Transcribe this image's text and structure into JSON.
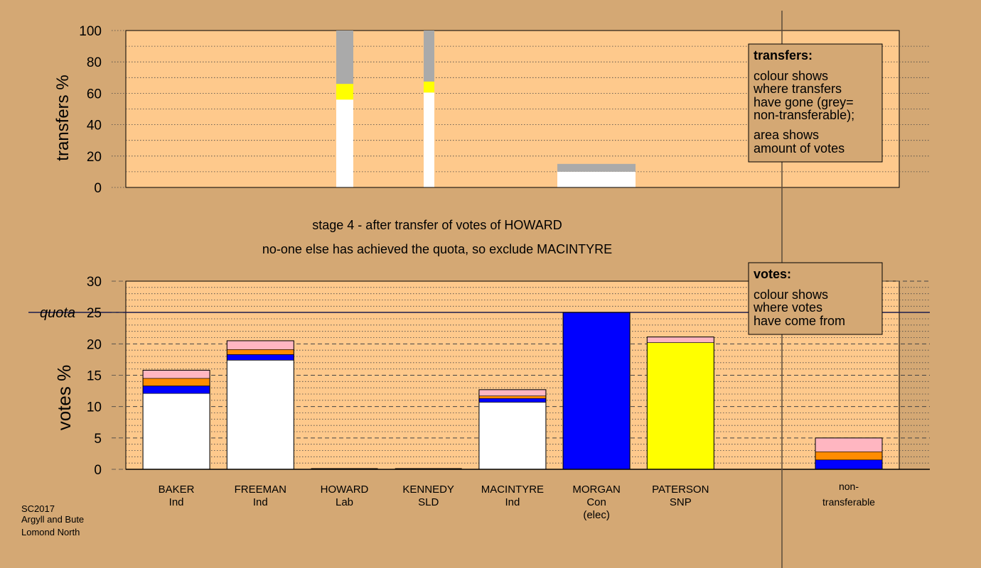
{
  "colors": {
    "page_bg": "#d4a874",
    "plot_bg": "#fec98c",
    "white": "#ffffff",
    "blue": "#0000ff",
    "orange": "#ff8c00",
    "pink": "#ffb6c1",
    "yellow": "#ffff00",
    "grey": "#aaaaaa"
  },
  "stage": {
    "line1": "stage 4 - after transfer of votes of HOWARD",
    "line2": "no-one else has achieved the quota, so exclude MACINTYRE"
  },
  "source": {
    "line1": "SC2017",
    "line2": "Argyll and Bute",
    "line3": "Lomond North"
  },
  "chart_data": [
    {
      "type": "bar",
      "stacked": true,
      "ylabel": "transfers %",
      "ylim": [
        0,
        100
      ],
      "yticks": [
        0,
        20,
        40,
        60,
        80,
        100
      ],
      "legend": {
        "title": "transfers:",
        "lines1": [
          "colour shows",
          "where transfers",
          "have gone (grey=",
          "non-transferable);"
        ],
        "lines2": [
          "area shows",
          "amount of votes"
        ]
      },
      "bars": [
        {
          "candidate": "HOWARD",
          "segments": [
            {
              "color": "white",
              "value": 56
            },
            {
              "color": "yellow",
              "value": 10
            },
            {
              "color": "grey",
              "value": 34
            }
          ]
        },
        {
          "candidate": "KENNEDY",
          "segments": [
            {
              "color": "white",
              "value": 60.5
            },
            {
              "color": "yellow",
              "value": 7
            },
            {
              "color": "grey",
              "value": 32.5
            }
          ]
        },
        {
          "candidate": "MACINTYRE",
          "segments": [
            {
              "color": "white",
              "value": 10
            },
            {
              "color": "grey",
              "value": 5
            }
          ]
        }
      ]
    },
    {
      "type": "bar",
      "stacked": true,
      "ylabel": "votes %",
      "ylim": [
        0,
        30
      ],
      "yticks": [
        0,
        5,
        10,
        15,
        20,
        25,
        30
      ],
      "quota": {
        "value": 25,
        "label": "quota"
      },
      "legend": {
        "title": "votes:",
        "lines1": [
          "colour shows",
          "where votes",
          "have come from"
        ]
      },
      "categories": [
        {
          "name": "BAKER",
          "party": "Ind",
          "note": "",
          "segments": [
            {
              "color": "white",
              "value": 12.1
            },
            {
              "color": "blue",
              "value": 1.2
            },
            {
              "color": "orange",
              "value": 1.2
            },
            {
              "color": "pink",
              "value": 1.3
            }
          ]
        },
        {
          "name": "FREEMAN",
          "party": "Ind",
          "note": "",
          "segments": [
            {
              "color": "white",
              "value": 17.4
            },
            {
              "color": "blue",
              "value": 0.9
            },
            {
              "color": "orange",
              "value": 0.8
            },
            {
              "color": "pink",
              "value": 1.4
            }
          ]
        },
        {
          "name": "HOWARD",
          "party": "Lab",
          "note": "",
          "segments": []
        },
        {
          "name": "KENNEDY",
          "party": "SLD",
          "note": "",
          "segments": []
        },
        {
          "name": "MACINTYRE",
          "party": "Ind",
          "note": "",
          "segments": [
            {
              "color": "white",
              "value": 10.7
            },
            {
              "color": "blue",
              "value": 0.6
            },
            {
              "color": "orange",
              "value": 0.4
            },
            {
              "color": "pink",
              "value": 1.0
            }
          ]
        },
        {
          "name": "MORGAN",
          "party": "Con",
          "note": "(elec)",
          "segments": [
            {
              "color": "blue",
              "value": 25
            }
          ]
        },
        {
          "name": "PATERSON",
          "party": "SNP",
          "note": "",
          "segments": [
            {
              "color": "yellow",
              "value": 20.2
            },
            {
              "color": "pink",
              "value": 0.9
            }
          ]
        }
      ],
      "nontransferable": {
        "line1": "non-",
        "line2": "transferable",
        "segments": [
          {
            "color": "blue",
            "value": 1.5
          },
          {
            "color": "orange",
            "value": 1.3
          },
          {
            "color": "pink",
            "value": 2.2
          }
        ]
      }
    }
  ]
}
